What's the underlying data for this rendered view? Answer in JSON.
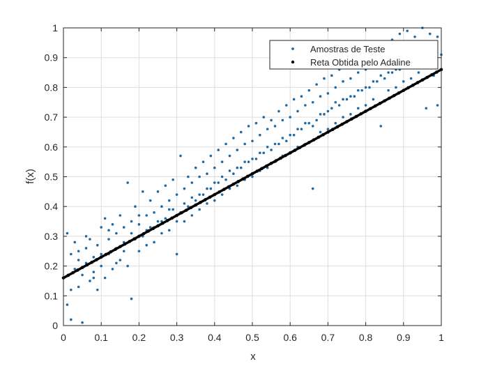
{
  "chart_data": {
    "type": "scatter",
    "xlabel": "x",
    "ylabel": "f(x)",
    "xlim": [
      0,
      1
    ],
    "ylim": [
      0,
      1
    ],
    "xticks": [
      "0",
      "0.1",
      "0.2",
      "0.3",
      "0.4",
      "0.5",
      "0.6",
      "0.7",
      "0.8",
      "0.9",
      "1"
    ],
    "yticks": [
      "0",
      "0.1",
      "0.2",
      "0.3",
      "0.4",
      "0.5",
      "0.6",
      "0.7",
      "0.8",
      "0.9",
      "1"
    ],
    "grid": true,
    "legend_position": "top-right",
    "series": [
      {
        "name": "Amostras de Teste",
        "kind": "scatter",
        "color": "#1f6aa5",
        "points": [
          [
            0.0,
            0.16
          ],
          [
            0.01,
            0.31
          ],
          [
            0.01,
            0.07
          ],
          [
            0.02,
            0.02
          ],
          [
            0.02,
            0.24
          ],
          [
            0.03,
            0.19
          ],
          [
            0.03,
            0.28
          ],
          [
            0.04,
            0.13
          ],
          [
            0.04,
            0.22
          ],
          [
            0.05,
            0.01
          ],
          [
            0.05,
            0.17
          ],
          [
            0.06,
            0.26
          ],
          [
            0.06,
            0.21
          ],
          [
            0.07,
            0.15
          ],
          [
            0.07,
            0.29
          ],
          [
            0.08,
            0.18
          ],
          [
            0.08,
            0.23
          ],
          [
            0.09,
            0.12
          ],
          [
            0.09,
            0.27
          ],
          [
            0.1,
            0.2
          ],
          [
            0.1,
            0.33
          ],
          [
            0.11,
            0.16
          ],
          [
            0.11,
            0.36
          ],
          [
            0.12,
            0.24
          ],
          [
            0.12,
            0.29
          ],
          [
            0.13,
            0.19
          ],
          [
            0.13,
            0.34
          ],
          [
            0.14,
            0.26
          ],
          [
            0.14,
            0.31
          ],
          [
            0.15,
            0.22
          ],
          [
            0.15,
            0.37
          ],
          [
            0.16,
            0.28
          ],
          [
            0.16,
            0.33
          ],
          [
            0.17,
            0.2
          ],
          [
            0.17,
            0.48
          ],
          [
            0.18,
            0.09
          ],
          [
            0.18,
            0.35
          ],
          [
            0.19,
            0.29
          ],
          [
            0.19,
            0.4
          ],
          [
            0.2,
            0.25
          ],
          [
            0.2,
            0.34
          ],
          [
            0.21,
            0.45
          ],
          [
            0.21,
            0.3
          ],
          [
            0.22,
            0.37
          ],
          [
            0.22,
            0.27
          ],
          [
            0.23,
            0.42
          ],
          [
            0.23,
            0.33
          ],
          [
            0.24,
            0.38
          ],
          [
            0.24,
            0.28
          ],
          [
            0.25,
            0.45
          ],
          [
            0.25,
            0.35
          ],
          [
            0.26,
            0.4
          ],
          [
            0.26,
            0.31
          ],
          [
            0.27,
            0.47
          ],
          [
            0.27,
            0.36
          ],
          [
            0.28,
            0.42
          ],
          [
            0.28,
            0.32
          ],
          [
            0.29,
            0.49
          ],
          [
            0.29,
            0.39
          ],
          [
            0.3,
            0.44
          ],
          [
            0.3,
            0.24
          ],
          [
            0.31,
            0.57
          ],
          [
            0.31,
            0.38
          ],
          [
            0.32,
            0.46
          ],
          [
            0.32,
            0.35
          ],
          [
            0.33,
            0.5
          ],
          [
            0.33,
            0.4
          ],
          [
            0.34,
            0.48
          ],
          [
            0.34,
            0.37
          ],
          [
            0.35,
            0.53
          ],
          [
            0.35,
            0.42
          ],
          [
            0.36,
            0.5
          ],
          [
            0.36,
            0.39
          ],
          [
            0.37,
            0.55
          ],
          [
            0.37,
            0.44
          ],
          [
            0.38,
            0.51
          ],
          [
            0.38,
            0.41
          ],
          [
            0.39,
            0.57
          ],
          [
            0.39,
            0.46
          ],
          [
            0.4,
            0.53
          ],
          [
            0.4,
            0.42
          ],
          [
            0.41,
            0.59
          ],
          [
            0.41,
            0.48
          ],
          [
            0.42,
            0.55
          ],
          [
            0.42,
            0.44
          ],
          [
            0.43,
            0.61
          ],
          [
            0.43,
            0.49
          ],
          [
            0.44,
            0.57
          ],
          [
            0.44,
            0.46
          ],
          [
            0.45,
            0.63
          ],
          [
            0.45,
            0.51
          ],
          [
            0.46,
            0.59
          ],
          [
            0.46,
            0.47
          ],
          [
            0.47,
            0.65
          ],
          [
            0.47,
            0.53
          ],
          [
            0.48,
            0.61
          ],
          [
            0.48,
            0.49
          ],
          [
            0.49,
            0.67
          ],
          [
            0.49,
            0.55
          ],
          [
            0.5,
            0.62
          ],
          [
            0.5,
            0.5
          ],
          [
            0.51,
            0.68
          ],
          [
            0.51,
            0.56
          ],
          [
            0.52,
            0.64
          ],
          [
            0.52,
            0.52
          ],
          [
            0.53,
            0.7
          ],
          [
            0.53,
            0.58
          ],
          [
            0.54,
            0.66
          ],
          [
            0.54,
            0.53
          ],
          [
            0.55,
            0.69
          ],
          [
            0.55,
            0.59
          ],
          [
            0.56,
            0.67
          ],
          [
            0.56,
            0.55
          ],
          [
            0.57,
            0.72
          ],
          [
            0.57,
            0.61
          ],
          [
            0.58,
            0.69
          ],
          [
            0.58,
            0.57
          ],
          [
            0.59,
            0.74
          ],
          [
            0.59,
            0.62
          ],
          [
            0.6,
            0.7
          ],
          [
            0.6,
            0.58
          ],
          [
            0.61,
            0.76
          ],
          [
            0.61,
            0.64
          ],
          [
            0.62,
            0.72
          ],
          [
            0.62,
            0.6
          ],
          [
            0.63,
            0.77
          ],
          [
            0.63,
            0.66
          ],
          [
            0.64,
            0.74
          ],
          [
            0.64,
            0.61
          ],
          [
            0.65,
            0.79
          ],
          [
            0.65,
            0.68
          ],
          [
            0.66,
            0.75
          ],
          [
            0.66,
            0.46
          ],
          [
            0.67,
            0.81
          ],
          [
            0.67,
            0.69
          ],
          [
            0.68,
            0.77
          ],
          [
            0.68,
            0.65
          ],
          [
            0.69,
            0.83
          ],
          [
            0.69,
            0.71
          ],
          [
            0.7,
            0.78
          ],
          [
            0.7,
            0.66
          ],
          [
            0.71,
            0.84
          ],
          [
            0.71,
            0.73
          ],
          [
            0.72,
            0.8
          ],
          [
            0.72,
            0.68
          ],
          [
            0.73,
            0.86
          ],
          [
            0.73,
            0.74
          ],
          [
            0.74,
            0.82
          ],
          [
            0.74,
            0.7
          ],
          [
            0.75,
            0.87
          ],
          [
            0.75,
            0.76
          ],
          [
            0.76,
            0.83
          ],
          [
            0.76,
            0.71
          ],
          [
            0.77,
            0.89
          ],
          [
            0.77,
            0.77
          ],
          [
            0.78,
            0.85
          ],
          [
            0.78,
            0.73
          ],
          [
            0.79,
            0.9
          ],
          [
            0.79,
            0.79
          ],
          [
            0.8,
            0.86
          ],
          [
            0.8,
            0.74
          ],
          [
            0.81,
            0.92
          ],
          [
            0.81,
            0.8
          ],
          [
            0.82,
            0.88
          ],
          [
            0.82,
            0.76
          ],
          [
            0.83,
            0.93
          ],
          [
            0.83,
            0.82
          ],
          [
            0.84,
            0.89
          ],
          [
            0.84,
            0.67
          ],
          [
            0.85,
            0.95
          ],
          [
            0.85,
            0.83
          ],
          [
            0.86,
            0.91
          ],
          [
            0.86,
            0.79
          ],
          [
            0.87,
            0.96
          ],
          [
            0.87,
            0.85
          ],
          [
            0.88,
            0.92
          ],
          [
            0.88,
            0.8
          ],
          [
            0.89,
            0.98
          ],
          [
            0.89,
            0.86
          ],
          [
            0.9,
            0.94
          ],
          [
            0.9,
            0.82
          ],
          [
            0.91,
            0.99
          ],
          [
            0.91,
            0.88
          ],
          [
            0.92,
            0.95
          ],
          [
            0.92,
            0.83
          ],
          [
            0.93,
            0.97
          ],
          [
            0.93,
            0.89
          ],
          [
            0.94,
            0.93
          ],
          [
            0.94,
            0.85
          ],
          [
            0.95,
            1.0
          ],
          [
            0.95,
            0.91
          ],
          [
            0.96,
            0.95
          ],
          [
            0.96,
            0.73
          ],
          [
            0.97,
            0.98
          ],
          [
            0.97,
            0.88
          ],
          [
            0.98,
            0.94
          ],
          [
            0.98,
            0.84
          ],
          [
            0.99,
            0.97
          ],
          [
            0.99,
            0.74
          ],
          [
            1.0,
            0.91
          ],
          [
            0.02,
            0.12
          ],
          [
            0.06,
            0.3
          ],
          [
            0.1,
            0.24
          ],
          [
            0.14,
            0.21
          ],
          [
            0.18,
            0.31
          ],
          [
            0.22,
            0.32
          ],
          [
            0.26,
            0.35
          ],
          [
            0.3,
            0.35
          ],
          [
            0.34,
            0.43
          ],
          [
            0.38,
            0.46
          ],
          [
            0.42,
            0.5
          ],
          [
            0.46,
            0.53
          ],
          [
            0.5,
            0.56
          ],
          [
            0.54,
            0.6
          ],
          [
            0.58,
            0.63
          ],
          [
            0.62,
            0.66
          ],
          [
            0.66,
            0.67
          ],
          [
            0.7,
            0.72
          ],
          [
            0.74,
            0.76
          ],
          [
            0.78,
            0.79
          ],
          [
            0.82,
            0.82
          ],
          [
            0.86,
            0.85
          ],
          [
            0.9,
            0.88
          ],
          [
            0.94,
            0.9
          ],
          [
            0.98,
            0.91
          ],
          [
            0.04,
            0.25
          ],
          [
            0.08,
            0.16
          ],
          [
            0.12,
            0.32
          ],
          [
            0.16,
            0.25
          ],
          [
            0.2,
            0.37
          ],
          [
            0.24,
            0.33
          ],
          [
            0.28,
            0.39
          ],
          [
            0.32,
            0.41
          ],
          [
            0.36,
            0.44
          ],
          [
            0.4,
            0.48
          ],
          [
            0.44,
            0.52
          ],
          [
            0.48,
            0.55
          ],
          [
            0.52,
            0.58
          ],
          [
            0.56,
            0.61
          ],
          [
            0.6,
            0.64
          ],
          [
            0.64,
            0.68
          ],
          [
            0.68,
            0.71
          ],
          [
            0.72,
            0.75
          ],
          [
            0.76,
            0.77
          ],
          [
            0.8,
            0.8
          ],
          [
            0.84,
            0.84
          ],
          [
            0.88,
            0.86
          ],
          [
            0.92,
            0.9
          ],
          [
            0.96,
            0.92
          ],
          [
            1.0,
            0.86
          ]
        ]
      },
      {
        "name": "Reta Obtida pelo Adaline",
        "kind": "line",
        "color": "#000000",
        "x": [
          0,
          1
        ],
        "y": [
          0.16,
          0.86
        ]
      }
    ]
  }
}
